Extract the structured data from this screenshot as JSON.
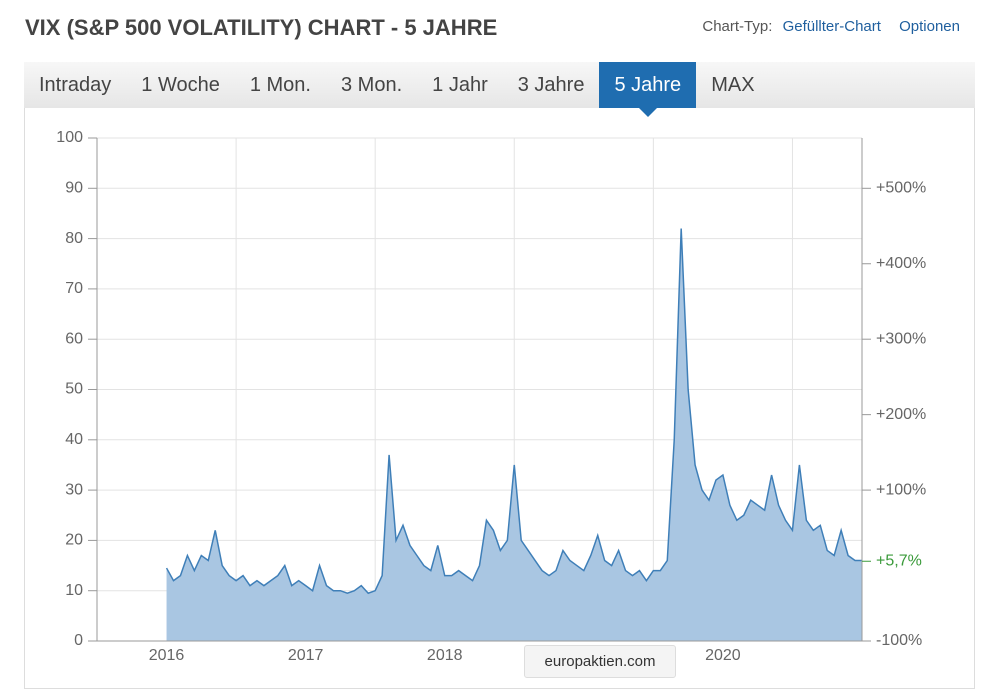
{
  "header": {
    "title": "VIX (S&P 500 VOLATILITY) CHART - 5 JAHRE",
    "chart_type_label": "Chart-Typ:",
    "chart_type_value": "Gefüllter-Chart",
    "options": "Optionen"
  },
  "tabs": [
    "Intraday",
    "1 Woche",
    "1 Mon.",
    "3 Mon.",
    "1 Jahr",
    "3 Jahre",
    "5 Jahre",
    "MAX"
  ],
  "active_tab": 6,
  "watermark": "europaktien.com",
  "chart_data": {
    "type": "area",
    "color": "#3f7fb8",
    "fill": "#a9c6e2",
    "x": [
      2016,
      2016.05,
      2016.1,
      2016.15,
      2016.2,
      2016.25,
      2016.3,
      2016.35,
      2016.4,
      2016.45,
      2016.5,
      2016.55,
      2016.6,
      2016.65,
      2016.7,
      2016.75,
      2016.8,
      2016.85,
      2016.9,
      2016.95,
      2017,
      2017.05,
      2017.1,
      2017.15,
      2017.2,
      2017.25,
      2017.3,
      2017.35,
      2017.4,
      2017.45,
      2017.5,
      2017.55,
      2017.6,
      2017.65,
      2017.7,
      2017.75,
      2017.8,
      2017.85,
      2017.9,
      2017.95,
      2018,
      2018.05,
      2018.1,
      2018.15,
      2018.2,
      2018.25,
      2018.3,
      2018.35,
      2018.4,
      2018.45,
      2018.5,
      2018.55,
      2018.6,
      2018.65,
      2018.7,
      2018.75,
      2018.8,
      2018.85,
      2018.9,
      2018.95,
      2019,
      2019.05,
      2019.1,
      2019.15,
      2019.2,
      2019.25,
      2019.3,
      2019.35,
      2019.4,
      2019.45,
      2019.5,
      2019.55,
      2019.6,
      2019.65,
      2019.7,
      2019.75,
      2019.8,
      2019.85,
      2019.9,
      2019.95,
      2020,
      2020.05,
      2020.1,
      2020.15,
      2020.2,
      2020.25,
      2020.3,
      2020.35,
      2020.4,
      2020.45,
      2020.5,
      2020.55,
      2020.6,
      2020.65,
      2020.7,
      2020.75,
      2020.8,
      2020.85,
      2020.9,
      2020.95,
      2021
    ],
    "values": [
      14.5,
      12,
      13,
      17,
      14,
      17,
      16,
      22,
      15,
      13,
      12,
      13,
      11,
      12,
      11,
      12,
      13,
      15,
      11,
      12,
      11,
      10,
      15,
      11,
      10,
      10,
      9.5,
      10,
      11,
      9.5,
      10,
      13,
      37,
      20,
      23,
      19,
      17,
      15,
      14,
      19,
      13,
      13,
      14,
      13,
      12,
      15,
      24,
      22,
      18,
      20,
      35,
      20,
      18,
      16,
      14,
      13,
      14,
      18,
      16,
      15,
      14,
      17,
      21,
      16,
      15,
      18,
      14,
      13,
      14,
      12,
      14,
      14,
      16,
      40,
      82,
      50,
      35,
      30,
      28,
      32,
      33,
      27,
      24,
      25,
      28,
      27,
      26,
      33,
      27,
      24,
      22,
      35,
      24,
      22,
      23,
      18,
      17,
      22,
      17,
      16,
      16
    ],
    "xlim": [
      2015.5,
      2021
    ],
    "xticks": [
      2016,
      2017,
      2018,
      2020
    ],
    "xgrid": [
      2016.5,
      2017.5,
      2018.5,
      2019.5,
      2020.5
    ],
    "ylim": [
      0,
      100
    ],
    "yticks": [
      0,
      10,
      20,
      30,
      40,
      50,
      60,
      70,
      80,
      90,
      100
    ],
    "y2lim": [
      -100,
      566.67
    ],
    "y2ticks": [
      {
        "value": -100,
        "label": "-100%"
      },
      {
        "value": 100,
        "label": "+100%"
      },
      {
        "value": 200,
        "label": "+200%"
      },
      {
        "value": 300,
        "label": "+300%"
      },
      {
        "value": 400,
        "label": "+400%"
      },
      {
        "value": 500,
        "label": "+500%"
      }
    ],
    "annotation": {
      "value": 5.7,
      "label": "+5,7%",
      "color": "#3a9a3a"
    },
    "grid": true
  }
}
